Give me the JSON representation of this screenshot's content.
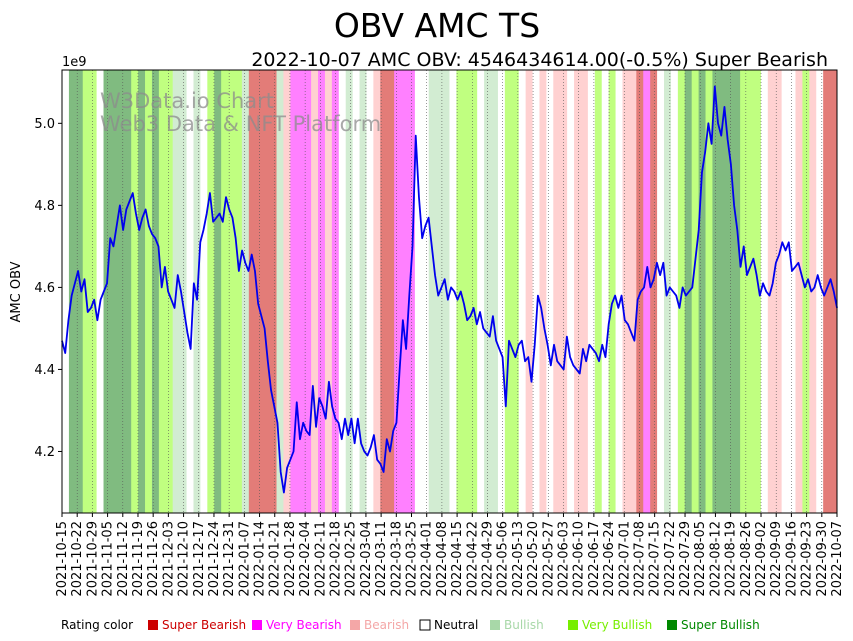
{
  "chart_data": {
    "type": "line",
    "title": "OBV AMC TS",
    "subtitle": "2022-10-07 AMC OBV: 4546434614.00(-0.5%) Super Bearish",
    "ylabel": "AMC OBV",
    "y_multiplier": "1e9",
    "ylim": [
      4.05,
      5.13
    ],
    "y_ticks": [
      4.2,
      4.4,
      4.6,
      4.8,
      5.0
    ],
    "y_tick_labels": [
      "4.2",
      "4.4",
      "4.6",
      "4.8",
      "5.0"
    ],
    "x_tick_labels": [
      "2021-10-15",
      "2021-10-22",
      "2021-10-29",
      "2021-11-05",
      "2021-11-12",
      "2021-11-19",
      "2021-11-26",
      "2021-12-03",
      "2021-12-10",
      "2021-12-17",
      "2021-12-24",
      "2021-12-31",
      "2022-01-07",
      "2022-01-14",
      "2022-01-21",
      "2022-01-28",
      "2022-02-04",
      "2022-02-11",
      "2022-02-18",
      "2022-02-25",
      "2022-03-04",
      "2022-03-11",
      "2022-03-18",
      "2022-03-25",
      "2022-04-01",
      "2022-04-08",
      "2022-04-15",
      "2022-04-22",
      "2022-04-29",
      "2022-05-06",
      "2022-05-13",
      "2022-05-20",
      "2022-05-27",
      "2022-06-03",
      "2022-06-10",
      "2022-06-17",
      "2022-06-24",
      "2022-07-01",
      "2022-07-08",
      "2022-07-15",
      "2022-07-22",
      "2022-07-29",
      "2022-08-05",
      "2022-08-12",
      "2022-08-19",
      "2022-08-26",
      "2022-09-02",
      "2022-09-09",
      "2022-09-16",
      "2022-09-23",
      "2022-09-30",
      "2022-10-07"
    ],
    "series": [
      {
        "name": "AMC OBV",
        "color": "#0000ee",
        "values": [
          4.47,
          4.44,
          4.52,
          4.58,
          4.61,
          4.64,
          4.59,
          4.62,
          4.54,
          4.55,
          4.57,
          4.52,
          4.57,
          4.59,
          4.61,
          4.72,
          4.7,
          4.75,
          4.8,
          4.74,
          4.79,
          4.81,
          4.83,
          4.78,
          4.74,
          4.77,
          4.79,
          4.75,
          4.73,
          4.72,
          4.7,
          4.6,
          4.65,
          4.59,
          4.57,
          4.55,
          4.63,
          4.59,
          4.54,
          4.49,
          4.45,
          4.61,
          4.57,
          4.71,
          4.74,
          4.78,
          4.83,
          4.76,
          4.77,
          4.78,
          4.76,
          4.82,
          4.79,
          4.77,
          4.72,
          4.64,
          4.69,
          4.66,
          4.64,
          4.68,
          4.64,
          4.56,
          4.53,
          4.5,
          4.42,
          4.35,
          4.31,
          4.27,
          4.15,
          4.1,
          4.16,
          4.18,
          4.2,
          4.32,
          4.23,
          4.27,
          4.25,
          4.24,
          4.36,
          4.26,
          4.33,
          4.31,
          4.28,
          4.37,
          4.31,
          4.28,
          4.27,
          4.23,
          4.28,
          4.24,
          4.28,
          4.22,
          4.28,
          4.22,
          4.2,
          4.19,
          4.21,
          4.24,
          4.18,
          4.17,
          4.15,
          4.23,
          4.2,
          4.25,
          4.27,
          4.4,
          4.52,
          4.45,
          4.58,
          4.7,
          4.97,
          4.82,
          4.72,
          4.75,
          4.77,
          4.7,
          4.63,
          4.58,
          4.6,
          4.62,
          4.57,
          4.6,
          4.59,
          4.57,
          4.59,
          4.56,
          4.52,
          4.53,
          4.55,
          4.51,
          4.54,
          4.5,
          4.49,
          4.48,
          4.53,
          4.47,
          4.45,
          4.43,
          4.31,
          4.47,
          4.45,
          4.43,
          4.46,
          4.47,
          4.42,
          4.43,
          4.37,
          4.46,
          4.58,
          4.55,
          4.5,
          4.46,
          4.41,
          4.46,
          4.42,
          4.41,
          4.4,
          4.48,
          4.43,
          4.41,
          4.4,
          4.39,
          4.45,
          4.42,
          4.46,
          4.45,
          4.44,
          4.42,
          4.46,
          4.43,
          4.51,
          4.56,
          4.58,
          4.55,
          4.58,
          4.52,
          4.51,
          4.49,
          4.47,
          4.57,
          4.59,
          4.6,
          4.65,
          4.6,
          4.62,
          4.66,
          4.63,
          4.66,
          4.58,
          4.6,
          4.59,
          4.58,
          4.55,
          4.6,
          4.58,
          4.59,
          4.6,
          4.67,
          4.74,
          4.88,
          4.93,
          5.0,
          4.95,
          5.09,
          5.0,
          4.97,
          5.04,
          4.96,
          4.9,
          4.8,
          4.74,
          4.65,
          4.7,
          4.63,
          4.65,
          4.67,
          4.63,
          4.58,
          4.61,
          4.59,
          4.58,
          4.61,
          4.66,
          4.68,
          4.71,
          4.69,
          4.71,
          4.64,
          4.65,
          4.66,
          4.63,
          4.6,
          4.62,
          4.59,
          4.6,
          4.63,
          4.6,
          4.58,
          4.6,
          4.62,
          4.59,
          4.55
        ]
      }
    ],
    "rating_bands": [
      [
        "N",
        1
      ],
      [
        "SB",
        2
      ],
      [
        "VB",
        2
      ],
      [
        "N",
        1
      ],
      [
        "SB",
        4
      ],
      [
        "VB",
        1
      ],
      [
        "SB",
        1
      ],
      [
        "VB",
        1
      ],
      [
        "SB",
        1
      ],
      [
        "VB",
        2
      ],
      [
        "B",
        2
      ],
      [
        "N",
        1
      ],
      [
        "B",
        1
      ],
      [
        "N",
        1
      ],
      [
        "VB",
        1
      ],
      [
        "SB",
        1
      ],
      [
        "VB",
        3
      ],
      [
        "B",
        1
      ],
      [
        "SR",
        4
      ],
      [
        "B",
        1
      ],
      [
        "R",
        1
      ],
      [
        "VR",
        3
      ],
      [
        "R",
        1
      ],
      [
        "VR",
        1
      ],
      [
        "R",
        1
      ],
      [
        "VR",
        1
      ],
      [
        "N",
        1
      ],
      [
        "B",
        1
      ],
      [
        "N",
        1
      ],
      [
        "B",
        1
      ],
      [
        "N",
        1
      ],
      [
        "R",
        1
      ],
      [
        "SR",
        2
      ],
      [
        "VR",
        3
      ],
      [
        "N",
        2
      ],
      [
        "B",
        3
      ],
      [
        "N",
        1
      ],
      [
        "VB",
        3
      ],
      [
        "N",
        1
      ],
      [
        "B",
        2
      ],
      [
        "N",
        1
      ],
      [
        "VB",
        2
      ],
      [
        "N",
        1
      ],
      [
        "R",
        1
      ],
      [
        "N",
        1
      ],
      [
        "R",
        1
      ],
      [
        "N",
        1
      ],
      [
        "R",
        2
      ],
      [
        "N",
        1
      ],
      [
        "R",
        2
      ],
      [
        "N",
        1
      ],
      [
        "VB",
        1
      ],
      [
        "N",
        1
      ],
      [
        "VB",
        1
      ],
      [
        "N",
        1
      ],
      [
        "R",
        2
      ],
      [
        "SR",
        1
      ],
      [
        "VR",
        1
      ],
      [
        "SR",
        1
      ],
      [
        "N",
        1
      ],
      [
        "B",
        1
      ],
      [
        "N",
        1
      ],
      [
        "VB",
        1
      ],
      [
        "SB",
        1
      ],
      [
        "VB",
        1
      ],
      [
        "SB",
        1
      ],
      [
        "VB",
        1
      ],
      [
        "SB",
        4
      ],
      [
        "VB",
        3
      ],
      [
        "N",
        1
      ],
      [
        "R",
        2
      ],
      [
        "N",
        2
      ],
      [
        "R",
        1
      ],
      [
        "VB",
        1
      ],
      [
        "R",
        1
      ],
      [
        "N",
        1
      ],
      [
        "SR",
        2
      ]
    ],
    "legend": {
      "title": "Rating color",
      "items": [
        {
          "label": "Super Bearish",
          "color": "#cc0000"
        },
        {
          "label": "Very Bearish",
          "color": "#ff00ff"
        },
        {
          "label": "Bearish",
          "color": "#f4a7a7"
        },
        {
          "label": "Neutral",
          "color": "#ffffff"
        },
        {
          "label": "Bullish",
          "color": "#a8d8a8"
        },
        {
          "label": "Very Bullish",
          "color": "#77ee00"
        },
        {
          "label": "Super Bullish",
          "color": "#008800"
        }
      ]
    },
    "band_colors": {
      "SR": "#e37c78",
      "VR": "#ff80ff",
      "R": "#ffd1d1",
      "N": "#ffffff",
      "B": "#d2ecd2",
      "VB": "#c0ff80",
      "SB": "#80bb80"
    }
  },
  "watermark": {
    "line1": "W3Data.io Chart",
    "line2": "Web3 Data & NFT Platform"
  }
}
